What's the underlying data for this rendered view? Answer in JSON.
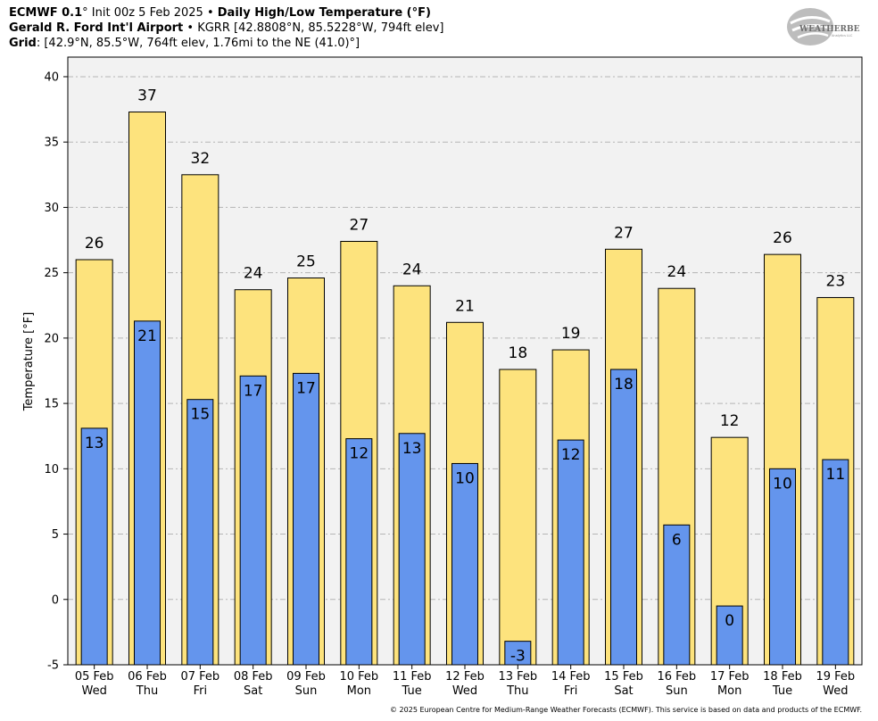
{
  "header": {
    "line1_model": "ECMWF 0.1",
    "line1_init": "° Init 00z 5 Feb 2025 • ",
    "line1_product": "Daily High/Low Temperature (°F)",
    "line2_station": "Gerald R. Ford Int'l Airport",
    "line2_info": " • KGRR [42.8808°N, 85.5228°W, 794ft elev]",
    "line3_label": "Grid",
    "line3_info": ": [42.9°N, 85.5°W, 764ft elev, 1.76mi to the NE (41.0)°]"
  },
  "logo": {
    "text": "WEATHERBELL",
    "small": "Analytics LLC"
  },
  "copyright": "© 2025 European Centre for Medium-Range Weather Forecasts (ECMWF). This service is based on data and products of the ECMWF.",
  "colors": {
    "high": "#FDE37D",
    "low": "#6495ED",
    "plot_bg": "#F2F2F2"
  },
  "chart_data": {
    "type": "bar",
    "ylabel": "Temperature [°F]",
    "ylim": [
      -5,
      41.5
    ],
    "yticks": [
      -5,
      0,
      5,
      10,
      15,
      20,
      25,
      30,
      35,
      40
    ],
    "grid": true,
    "categories": [
      [
        "05 Feb",
        "Wed"
      ],
      [
        "06 Feb",
        "Thu"
      ],
      [
        "07 Feb",
        "Fri"
      ],
      [
        "08 Feb",
        "Sat"
      ],
      [
        "09 Feb",
        "Sun"
      ],
      [
        "10 Feb",
        "Mon"
      ],
      [
        "11 Feb",
        "Tue"
      ],
      [
        "12 Feb",
        "Wed"
      ],
      [
        "13 Feb",
        "Thu"
      ],
      [
        "14 Feb",
        "Fri"
      ],
      [
        "15 Feb",
        "Sat"
      ],
      [
        "16 Feb",
        "Sun"
      ],
      [
        "17 Feb",
        "Mon"
      ],
      [
        "18 Feb",
        "Tue"
      ],
      [
        "19 Feb",
        "Wed"
      ]
    ],
    "series": [
      {
        "values": [
          26.0,
          37.3,
          32.5,
          23.7,
          24.6,
          27.4,
          24.0,
          21.2,
          17.6,
          19.1,
          26.8,
          23.8,
          12.4,
          26.4,
          23.1
        ],
        "labels": [
          "26",
          "37",
          "32",
          "24",
          "25",
          "27",
          "24",
          "21",
          "18",
          "19",
          "27",
          "24",
          "12",
          "26",
          "23"
        ]
      },
      {
        "values": [
          13.1,
          21.3,
          15.3,
          17.1,
          17.3,
          12.3,
          12.7,
          10.4,
          -3.2,
          12.2,
          17.6,
          5.7,
          -0.5,
          10.0,
          10.7
        ],
        "labels": [
          "13",
          "21",
          "15",
          "17",
          "17",
          "12",
          "13",
          "10",
          "-3",
          "12",
          "18",
          "6",
          "0",
          "10",
          "11"
        ]
      }
    ]
  }
}
